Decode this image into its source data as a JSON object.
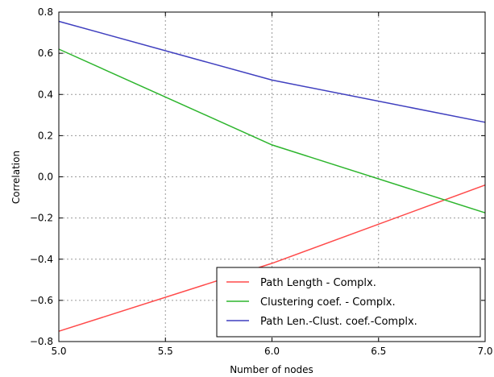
{
  "chart_data": {
    "type": "line",
    "xlabel": "Number of nodes",
    "ylabel": "Correlation",
    "xlim": [
      5.0,
      7.0
    ],
    "ylim": [
      -0.8,
      0.8
    ],
    "grid": true,
    "legend_position": "lower-right",
    "x_ticks": [
      "5.0",
      "5.5",
      "6.0",
      "6.5",
      "7.0"
    ],
    "y_ticks": [
      "0.8",
      "0.6",
      "0.4",
      "0.2",
      "0.0",
      "−0.2",
      "−0.4",
      "−0.6",
      "−0.8"
    ],
    "series": [
      {
        "name": "Path Length - Complx.",
        "color": "#ff4a4a",
        "x": [
          5,
          6,
          7
        ],
        "y": [
          -0.75,
          -0.42,
          -0.04
        ]
      },
      {
        "name": "Clustering coef. - Complx.",
        "color": "#2db52d",
        "x": [
          5,
          6,
          7
        ],
        "y": [
          0.62,
          0.155,
          -0.175
        ]
      },
      {
        "name": "Path Len.-Clust. coef.-Complx.",
        "color": "#3f3fbf",
        "x": [
          5,
          6,
          7
        ],
        "y": [
          0.755,
          0.47,
          0.265
        ]
      }
    ]
  }
}
